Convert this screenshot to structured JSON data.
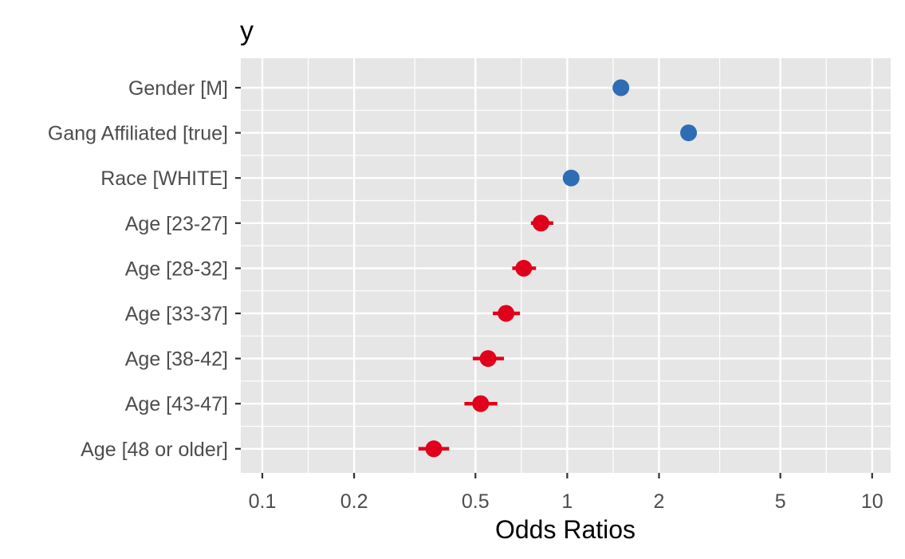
{
  "chart_data": {
    "type": "scatter",
    "title": "y",
    "xlabel": "Odds Ratios",
    "ylabel": "",
    "x_scale": "log10",
    "xlim": [
      0.085,
      11.5
    ],
    "x_ticks": [
      0.1,
      0.2,
      0.5,
      1,
      2,
      5,
      10
    ],
    "x_tick_labels": [
      "0.1",
      "0.2",
      "0.5",
      "1",
      "2",
      "5",
      "10"
    ],
    "grid": true,
    "legend": "none",
    "colors": {
      "positive": "#2e6db4",
      "negative": "#e0001b",
      "panel": "#e6e6e6",
      "grid": "#ffffff"
    },
    "categories": [
      "Gender [M]",
      "Gang Affiliated [true]",
      "Race [WHITE]",
      "Age [23-27]",
      "Age [28-32]",
      "Age [33-37]",
      "Age [38-42]",
      "Age [43-47]",
      "Age [48 or older]"
    ],
    "estimates": [
      1.5,
      2.5,
      1.03,
      0.82,
      0.72,
      0.63,
      0.55,
      0.52,
      0.365
    ],
    "ci_low": [
      1.44,
      2.36,
      1.0,
      0.76,
      0.66,
      0.57,
      0.49,
      0.46,
      0.325
    ],
    "ci_high": [
      1.58,
      2.66,
      1.07,
      0.9,
      0.79,
      0.7,
      0.62,
      0.59,
      0.41
    ]
  }
}
